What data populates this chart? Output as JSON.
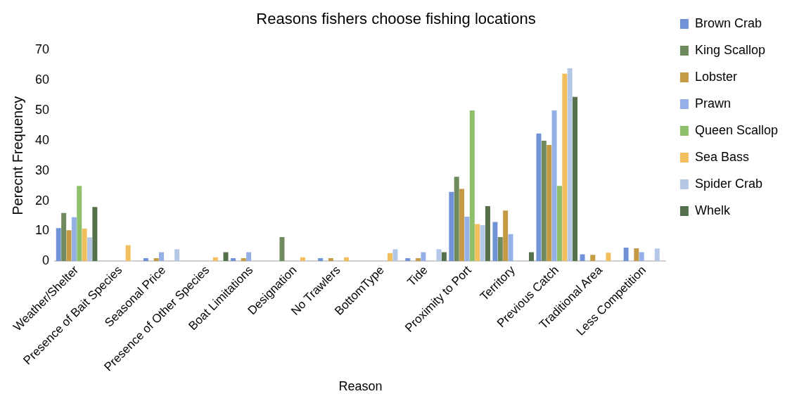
{
  "chart_data": {
    "type": "bar",
    "title": "Reasons fishers choose fishing locations",
    "xlabel": "Reason",
    "ylabel": "Perecnt Frequency",
    "categories": [
      "Weather/Shelter",
      "Presence of Bait Species",
      "Seasonal Price",
      "Presence of Other Species",
      "Boat Limitations",
      "Designation",
      "No Trawlers",
      "BottomType",
      "Tide",
      "Proximity to Port",
      "Territory",
      "Previous Catch",
      "Traditional Area",
      "Less Competition"
    ],
    "series": [
      {
        "name": "Brown Crab",
        "color": "#6f93d6",
        "values": [
          11,
          0,
          1,
          0,
          1,
          0,
          1,
          0,
          1,
          23,
          13,
          42.4,
          2.3,
          4.5
        ]
      },
      {
        "name": "King Scallop",
        "color": "#6f8a5c",
        "values": [
          16,
          0,
          0,
          0,
          0,
          8,
          0,
          0,
          0,
          28,
          8,
          40,
          0,
          0
        ]
      },
      {
        "name": "Lobster",
        "color": "#c49a45",
        "values": [
          10.3,
          0,
          1,
          0,
          1,
          0,
          1,
          0,
          1,
          24,
          16.8,
          38.6,
          2.1,
          4.3
        ]
      },
      {
        "name": "Prawn",
        "color": "#94b0e6",
        "values": [
          14.6,
          0,
          3,
          0,
          3,
          0,
          0,
          0,
          3,
          14.8,
          9,
          50,
          0,
          3
        ]
      },
      {
        "name": "Queen Scallop",
        "color": "#8fbf6a",
        "values": [
          25,
          0,
          0,
          0,
          0,
          0,
          0,
          0,
          0,
          50,
          0,
          25,
          0,
          0
        ]
      },
      {
        "name": "Sea Bass",
        "color": "#f2bf5e",
        "values": [
          10.8,
          5.3,
          0,
          1.3,
          0,
          1.3,
          1.3,
          2.7,
          0,
          12.3,
          0,
          62.2,
          2.8,
          0
        ]
      },
      {
        "name": "Spider Crab",
        "color": "#b4c7e7",
        "values": [
          7.9,
          0,
          4,
          0,
          0,
          0,
          0,
          4,
          4,
          12,
          0,
          64,
          0,
          4.2
        ]
      },
      {
        "name": "Whelk",
        "color": "#55704a",
        "values": [
          18,
          0,
          0,
          3,
          0,
          0,
          0,
          0,
          3,
          18.3,
          3,
          54.5,
          0,
          0
        ]
      }
    ],
    "ylim": [
      0,
      70
    ],
    "yticks": [
      0,
      10,
      20,
      30,
      40,
      50,
      60,
      70
    ],
    "grid": false,
    "legend": "right"
  }
}
